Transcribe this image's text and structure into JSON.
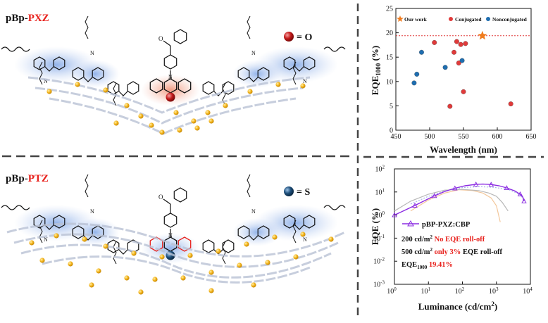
{
  "left_panel": {
    "top_title": {
      "prefix": "pBp-",
      "accent": "PXZ"
    },
    "top_legend": "= O",
    "bottom_title": {
      "prefix": "pBp-",
      "accent": "PTZ"
    },
    "bottom_legend": "= S",
    "colors": {
      "accent": "#e8211c",
      "oxygen": "#c21a1a",
      "sulfur": "#1d4e7a",
      "halo_blue": "#a9c4ec",
      "halo_red": "#f3a18b",
      "gold": "#f2b31a",
      "chain": "#b9c2d4"
    }
  },
  "chart_data": [
    {
      "type": "scatter",
      "title": "",
      "xlabel": "Wavelength (nm)",
      "ylabel_main": "EQE",
      "ylabel_sub": "1000",
      "ylabel_unit": " (%)",
      "xlim": [
        450,
        650
      ],
      "ylim": [
        0,
        25
      ],
      "xticks": [
        "450",
        "500",
        "550",
        "600",
        "650"
      ],
      "yticks": [
        "0",
        "5",
        "10",
        "15",
        "20",
        "25"
      ],
      "legend_position": "top",
      "series": [
        {
          "name": "Our work",
          "marker": "star",
          "color": "#f07c1e",
          "points": [
            [
              578,
              19.4
            ]
          ]
        },
        {
          "name": "Conjugated",
          "marker": "circle",
          "color": "#e03a3a",
          "points": [
            [
              507,
              18.0
            ],
            [
              536,
              16.0
            ],
            [
              540,
              18.2
            ],
            [
              546,
              17.6
            ],
            [
              553,
              17.8
            ],
            [
              543,
              13.8
            ],
            [
              550,
              7.9
            ],
            [
              530,
              4.9
            ],
            [
              620,
              5.4
            ]
          ]
        },
        {
          "name": "Nonconjugated",
          "marker": "circle",
          "color": "#1f6eb0",
          "points": [
            [
              488,
              16.0
            ],
            [
              523,
              12.9
            ],
            [
              548,
              14.3
            ],
            [
              481,
              11.5
            ],
            [
              477,
              9.7
            ]
          ]
        }
      ],
      "reference_line": {
        "y": 19.4,
        "style": "dashed",
        "color": "#e03a3a"
      }
    },
    {
      "type": "line",
      "xscale": "log",
      "yscale": "log",
      "xlabel": "Luminance (cd/cm",
      "xlabel_sup": "2",
      "xlabel_end": ")",
      "ylabel": "EQE (%)",
      "xlim": [
        1,
        10000
      ],
      "ylim": [
        0.001,
        100
      ],
      "xtick_base": "10",
      "xtick_exps": [
        "0",
        "1",
        "2",
        "3",
        "4"
      ],
      "ytick_base": "10",
      "ytick_exps": [
        "-3",
        "-2",
        "-1",
        "0",
        "1",
        "2"
      ],
      "series": [
        {
          "name": "pBP-PXZ:CBP",
          "color": "#8b2be2",
          "style": "solid",
          "marker": "triangle",
          "x": [
            1,
            2,
            4,
            8,
            15,
            30,
            60,
            120,
            250,
            400,
            700,
            1200,
            2000,
            3500,
            5000,
            6000,
            6500
          ],
          "y": [
            1.0,
            1.6,
            2.6,
            4.3,
            6.8,
            10.5,
            14.5,
            18.5,
            21.5,
            22.0,
            21.0,
            18.5,
            15.0,
            11.0,
            8.0,
            6.0,
            4.0
          ]
        },
        {
          "name": "",
          "color": "#a9b8e6",
          "style": "dotted",
          "x": [
            3,
            10,
            30,
            100,
            300,
            800,
            1500,
            2500,
            4000,
            5500,
            6500
          ],
          "y": [
            3.0,
            6.5,
            11.0,
            15.5,
            17.0,
            16.0,
            14.0,
            12.0,
            9.0,
            6.5,
            4.0
          ]
        },
        {
          "name": "",
          "color": "#b8b8b8",
          "style": "solid",
          "x": [
            1,
            3,
            10,
            30,
            100,
            300,
            600,
            1000,
            1500,
            2200
          ],
          "y": [
            1.5,
            4.0,
            8.0,
            12.0,
            13.0,
            11.5,
            9.0,
            6.5,
            3.5,
            1.5
          ]
        },
        {
          "name": "",
          "color": "#f3c79b",
          "style": "solid",
          "x": [
            3,
            10,
            30,
            80,
            200,
            400,
            700,
            1000,
            1300
          ],
          "y": [
            1.5,
            4.5,
            9.0,
            12.5,
            11.5,
            9.0,
            5.5,
            2.5,
            0.5
          ]
        }
      ],
      "annotations": [
        {
          "lead_num": "200 cd/m",
          "lead_sup": "2",
          "lead_rest": " ",
          "highlight": "No EQE roll-off",
          "tail": ""
        },
        {
          "lead_num": "500 cd/m",
          "lead_sup": "2",
          "lead_rest": " ",
          "highlight": "only 3%",
          "tail": " EQE roll-off"
        },
        {
          "lead_num": "EQE",
          "lead_sub": "1000",
          "lead_rest": " ",
          "highlight": "19.41%",
          "tail": ""
        }
      ]
    }
  ]
}
